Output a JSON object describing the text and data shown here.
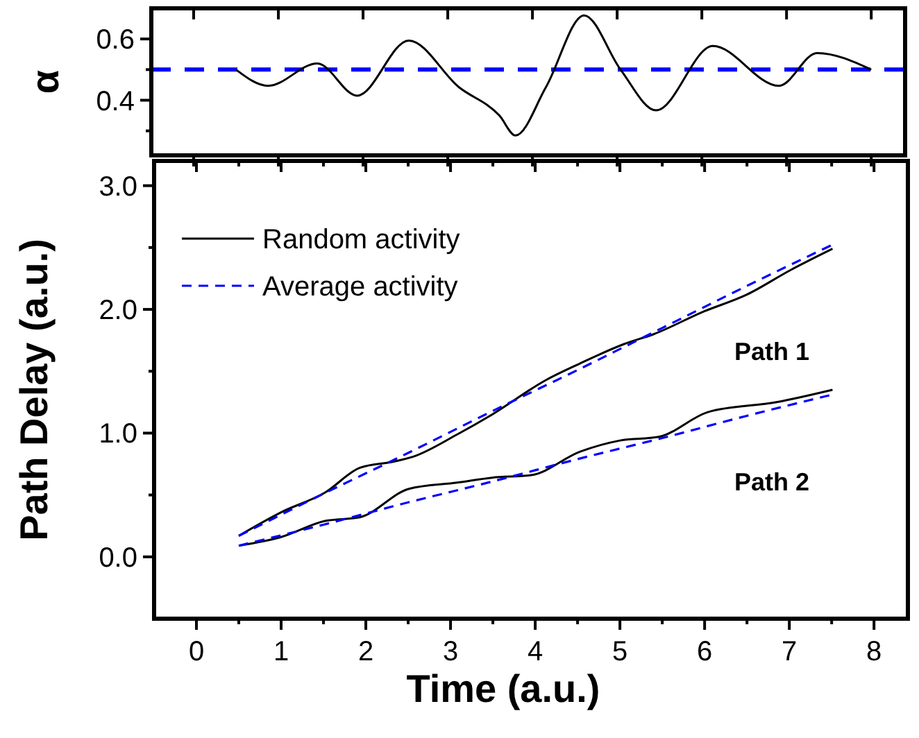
{
  "chart_data": [
    {
      "type": "line",
      "ylabel": "α",
      "xlim": [
        -0.5,
        8.4
      ],
      "ylim": [
        0.22,
        0.7
      ],
      "xticks": [
        0,
        1,
        2,
        3,
        4,
        5,
        6,
        7,
        8
      ],
      "yticks": [
        {
          "value": 0.3,
          "label": null
        },
        0.4,
        {
          "value": 0.5,
          "label": null
        },
        0.6
      ],
      "tick_labels": "y",
      "series": [
        {
          "color": "#000000",
          "line_style": "solid",
          "x": [
            0.5,
            0.88,
            1.46,
            1.93,
            2.54,
            3.13,
            3.61,
            3.8,
            4.16,
            4.61,
            5.04,
            5.46,
            6.13,
            6.91,
            7.36,
            8.0
          ],
          "values": [
            0.5,
            0.447,
            0.52,
            0.415,
            0.595,
            0.443,
            0.35,
            0.285,
            0.443,
            0.677,
            0.5,
            0.367,
            0.577,
            0.447,
            0.554,
            0.5
          ]
        }
      ],
      "ref_lines": [
        {
          "axis": "y",
          "value": 0.5,
          "color": "#0000ff",
          "line_style": "dashed"
        }
      ]
    },
    {
      "type": "line",
      "xlabel": "Time (a.u.)",
      "ylabel": "Path Delay (a.u.)",
      "xlim": [
        -0.5,
        8.4
      ],
      "ylim": [
        -0.5,
        3.2
      ],
      "xticks": [
        0,
        {
          "value": 0.5,
          "label": null
        },
        1,
        {
          "value": 1.5,
          "label": null
        },
        2,
        {
          "value": 2.5,
          "label": null
        },
        3,
        {
          "value": 3.5,
          "label": null
        },
        4,
        {
          "value": 4.5,
          "label": null
        },
        5,
        {
          "value": 5.5,
          "label": null
        },
        6,
        {
          "value": 6.5,
          "label": null
        },
        7,
        {
          "value": 7.5,
          "label": null
        },
        8
      ],
      "yticks": [
        {
          "value": 0,
          "label": "0.0"
        },
        {
          "value": 0.5,
          "label": null
        },
        {
          "value": 1,
          "label": "1.0"
        },
        {
          "value": 1.5,
          "label": null
        },
        {
          "value": 2,
          "label": "2.0"
        },
        {
          "value": 2.5,
          "label": null
        },
        {
          "value": 3,
          "label": "3.0"
        }
      ],
      "legend": "top left",
      "series": [
        {
          "name": "Random activity",
          "color": "#000000",
          "line_style": "solid",
          "x": [
            0.5,
            1.0,
            1.52,
            1.93,
            2.33,
            2.56,
            3.08,
            3.49,
            4.13,
            4.52,
            5.05,
            5.4,
            5.98,
            6.5,
            7.02,
            7.51
          ],
          "values": [
            0.17,
            0.36,
            0.52,
            0.72,
            0.77,
            0.81,
            0.99,
            1.15,
            1.43,
            1.56,
            1.72,
            1.8,
            1.98,
            2.12,
            2.32,
            2.49
          ]
        },
        {
          "name": "Average activity",
          "color": "#0000ff",
          "line_style": "dashed",
          "x": [
            0.5,
            1.5,
            2.5,
            3.5,
            4.5,
            5.5,
            6.5,
            7.5
          ],
          "values": [
            0.17,
            0.51,
            0.84,
            1.18,
            1.51,
            1.85,
            2.19,
            2.52
          ]
        },
        {
          "color": "#000000",
          "line_style": "solid",
          "x": [
            0.5,
            1.0,
            1.52,
            1.93,
            2.51,
            3.08,
            3.49,
            3.95,
            4.53,
            5.0,
            5.46,
            6.04,
            6.85,
            7.51
          ],
          "values": [
            0.09,
            0.16,
            0.29,
            0.32,
            0.55,
            0.6,
            0.64,
            0.66,
            0.85,
            0.94,
            0.97,
            1.17,
            1.25,
            1.35
          ]
        },
        {
          "color": "#0000ff",
          "line_style": "dashed",
          "x": [
            0.5,
            1.5,
            2.5,
            3.5,
            4.5,
            5.5,
            6.5,
            7.5
          ],
          "values": [
            0.09,
            0.26,
            0.44,
            0.61,
            0.79,
            0.96,
            1.14,
            1.31
          ]
        }
      ],
      "annotations": [
        "Path 1",
        "Path 2"
      ]
    }
  ]
}
